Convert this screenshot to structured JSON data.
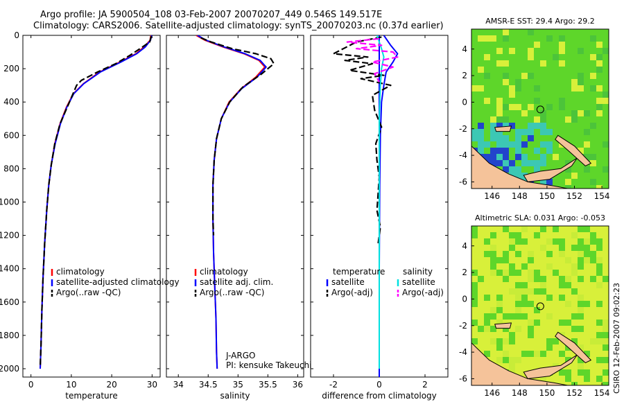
{
  "figure": {
    "title_line1": "Argo profile: JA 5900504_108 03-Feb-2007 20070207_449 0.546S 149.517E",
    "title_line2": "Climatology: CARS2006. Satellite-adjusted climatology: synTS_20070203.nc (0.37d earlier)",
    "side_label": "CSIRO 12-Feb-2007 09:02:23"
  },
  "colors": {
    "climatology": "#ff0000",
    "satellite": "#0000ff",
    "argo": "#000000",
    "salinity_satellite": "#00e0e0",
    "salinity_argo": "#ff00ff",
    "land": "#f5c39a",
    "map_green": "#5ed62a",
    "map_yellow": "#d8f03a",
    "map_cyan": "#3cc8b4",
    "map_blue": "#2244cc"
  },
  "chart_data": [
    {
      "type": "line",
      "id": "temperature",
      "title": "",
      "xlabel": "temperature",
      "ylabel": "",
      "xlim": [
        -2,
        32
      ],
      "ylim": [
        2050,
        0
      ],
      "xticks": [
        0,
        10,
        20,
        30
      ],
      "yticks": [
        0,
        200,
        400,
        600,
        800,
        1000,
        1200,
        1400,
        1600,
        1800,
        2000
      ],
      "legend": [
        "climatology",
        "satellite-adjusted climatology",
        "Argo(..raw -QC)"
      ],
      "legend_position": "lower-center",
      "series": [
        {
          "name": "climatology",
          "style": "solid",
          "x": [
            29.7,
            29.5,
            28.0,
            26.0,
            22.0,
            17.0,
            13.0,
            10.5,
            8.8,
            7.2,
            5.9,
            5.0,
            4.4,
            3.9,
            3.4,
            3.0,
            2.7,
            2.5,
            2.3
          ],
          "y": [
            0,
            30,
            70,
            110,
            160,
            220,
            290,
            350,
            430,
            530,
            650,
            780,
            900,
            1050,
            1250,
            1450,
            1650,
            1850,
            2000
          ]
        },
        {
          "name": "satellite-adjusted climatology",
          "style": "solid",
          "x": [
            29.9,
            29.6,
            28.3,
            26.2,
            22.3,
            17.2,
            13.1,
            10.6,
            8.9,
            7.3,
            6.0,
            5.0,
            4.4,
            3.9,
            3.4,
            3.0,
            2.7,
            2.5,
            2.3
          ],
          "y": [
            0,
            30,
            70,
            110,
            160,
            220,
            290,
            350,
            430,
            530,
            650,
            780,
            900,
            1050,
            1250,
            1450,
            1650,
            1850,
            2000
          ]
        },
        {
          "name": "Argo(..raw -QC)",
          "style": "dashed",
          "x": [
            29.8,
            29.4,
            27.0,
            24.5,
            21.0,
            16.5,
            12.5,
            11.3,
            9.0,
            7.2,
            5.9,
            5.0,
            4.4,
            3.9,
            3.4,
            3.0,
            2.7,
            2.5,
            2.3
          ],
          "y": [
            5,
            40,
            80,
            120,
            170,
            220,
            270,
            300,
            430,
            530,
            650,
            780,
            900,
            1050,
            1250,
            1450,
            1650,
            1850,
            1990
          ]
        }
      ]
    },
    {
      "type": "line",
      "id": "salinity",
      "title": "",
      "xlabel": "salinity",
      "ylabel": "",
      "xlim": [
        33.8,
        36.1
      ],
      "ylim": [
        2050,
        0
      ],
      "xticks": [
        34,
        34.5,
        35,
        35.5,
        36
      ],
      "yticks": [
        0,
        200,
        400,
        600,
        800,
        1000,
        1200,
        1400,
        1600,
        1800,
        2000
      ],
      "legend": [
        "climatology",
        "satellite adj. clim.",
        "Argo(..raw -QC)"
      ],
      "legend_position": "lower-center",
      "annotations": [
        "J-ARGO",
        "PI: kensuke Takeuchi"
      ],
      "series": [
        {
          "name": "climatology",
          "style": "solid",
          "x": [
            34.3,
            34.45,
            34.75,
            35.1,
            35.35,
            35.45,
            35.3,
            35.05,
            34.85,
            34.72,
            34.64,
            34.6,
            34.58,
            34.58,
            34.59,
            34.61,
            34.63,
            34.64,
            34.65
          ],
          "y": [
            0,
            30,
            70,
            110,
            150,
            190,
            250,
            320,
            400,
            500,
            620,
            750,
            900,
            1100,
            1300,
            1500,
            1700,
            1900,
            2000
          ]
        },
        {
          "name": "satellite adj. clim.",
          "style": "solid",
          "x": [
            34.32,
            34.47,
            34.77,
            35.12,
            35.37,
            35.47,
            35.32,
            35.06,
            34.86,
            34.72,
            34.64,
            34.6,
            34.58,
            34.58,
            34.59,
            34.61,
            34.63,
            34.64,
            34.65
          ],
          "y": [
            0,
            30,
            70,
            110,
            150,
            190,
            250,
            320,
            400,
            500,
            620,
            750,
            900,
            1100,
            1300,
            1500,
            1700,
            1900,
            2000
          ]
        },
        {
          "name": "Argo(..raw -QC)",
          "style": "dashed",
          "x": [
            34.38,
            34.55,
            34.9,
            35.3,
            35.55,
            35.6,
            35.4,
            35.08,
            34.86,
            34.72,
            34.64,
            34.6,
            34.58,
            34.58,
            34.59
          ],
          "y": [
            15,
            40,
            80,
            110,
            140,
            170,
            230,
            310,
            400,
            500,
            620,
            750,
            900,
            1100,
            1200
          ]
        }
      ]
    },
    {
      "type": "line",
      "id": "difference",
      "title": "",
      "xlabel": "difference from climatology",
      "ylabel": "",
      "xlim": [
        -3,
        3
      ],
      "ylim": [
        2050,
        0
      ],
      "xticks": [
        -2,
        0,
        2
      ],
      "yticks": [
        0,
        200,
        400,
        600,
        800,
        1000,
        1200,
        1400,
        1600,
        1800,
        2000
      ],
      "legend_columns": [
        "temperature",
        "salinity"
      ],
      "legend": [
        "satellite",
        "Argo(-adj)",
        "satellite",
        "Argo(-adj)"
      ],
      "legend_position": "lower-center",
      "series": [
        {
          "name": "temperature satellite",
          "style": "solid",
          "color_key": "satellite",
          "x": [
            0.2,
            0.5,
            0.8,
            0.6,
            0.3,
            0.2,
            0.1,
            0.05,
            0.02,
            0.0,
            0.0
          ],
          "y": [
            0,
            60,
            110,
            160,
            220,
            300,
            400,
            600,
            900,
            1400,
            2000
          ]
        },
        {
          "name": "temperature Argo(-adj)",
          "style": "dashed",
          "color_key": "argo",
          "x": [
            0.1,
            -1.0,
            -2.0,
            -0.5,
            -1.5,
            -0.3,
            -1.3,
            0.2,
            -0.8,
            0.5,
            -0.3,
            -0.2,
            0.1,
            -0.15,
            -0.1,
            0.0,
            -0.05,
            -0.1,
            0.05,
            -0.05
          ],
          "y": [
            10,
            40,
            110,
            130,
            150,
            170,
            210,
            240,
            260,
            300,
            360,
            450,
            550,
            650,
            750,
            850,
            950,
            1050,
            1150,
            1250
          ]
        },
        {
          "name": "salinity satellite",
          "style": "solid",
          "color_key": "salinity_satellite",
          "x": [
            -0.1,
            0.1,
            0.2,
            0.1,
            0.05,
            0.0,
            0.0,
            0.0
          ],
          "y": [
            0,
            80,
            130,
            200,
            300,
            500,
            1000,
            2000
          ]
        },
        {
          "name": "salinity Argo(-adj)",
          "style": "dashed",
          "color_key": "salinity_argo",
          "x": [
            0.0,
            -1.4,
            0.1,
            -1.0,
            0.6,
            0.8,
            -0.3,
            0.6,
            -0.2,
            0.0
          ],
          "y": [
            20,
            40,
            60,
            80,
            100,
            130,
            160,
            190,
            230,
            280
          ]
        }
      ]
    },
    {
      "type": "heatmap",
      "id": "sst_map",
      "title": "AMSR-E SST: 29.4  Argo: 29.2",
      "xlabel": "",
      "ylabel": "",
      "xlim": [
        144.5,
        154.5
      ],
      "ylim": [
        -6.5,
        5.5
      ],
      "xticks": [
        146,
        148,
        150,
        152,
        154
      ],
      "yticks": [
        4,
        2,
        0,
        -2,
        -4,
        -6
      ],
      "marker": {
        "lon": 149.517,
        "lat": -0.546
      }
    },
    {
      "type": "heatmap",
      "id": "sla_map",
      "title": "Altimetric SLA: 0.031  Argo: -0.053",
      "xlabel": "",
      "ylabel": "",
      "xlim": [
        144.5,
        154.5
      ],
      "ylim": [
        -6.5,
        5.5
      ],
      "xticks": [
        146,
        148,
        150,
        152,
        154
      ],
      "yticks": [
        4,
        2,
        0,
        -2,
        -4,
        -6
      ],
      "marker": {
        "lon": 149.517,
        "lat": -0.546
      }
    }
  ]
}
